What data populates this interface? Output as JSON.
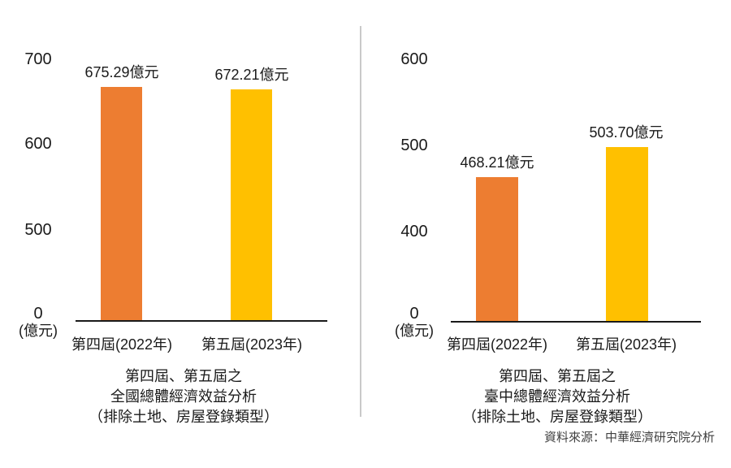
{
  "page": {
    "source_note": "資料來源：中華經濟研究院分析"
  },
  "chart_data": [
    {
      "type": "bar",
      "title": "第四屆、第五屆之全國總體經濟效益分析（排除土地、房屋登錄類型）",
      "title_lines": [
        "第四屆、第五屆之",
        "全國總體經濟效益分析",
        "（排除土地、房屋登錄類型）"
      ],
      "categories": [
        "第四屆(2022年)",
        "第五屆(2023年)"
      ],
      "values": [
        675.29,
        672.21
      ],
      "value_labels": [
        "675.29億元",
        "672.21億元"
      ],
      "series_colors": [
        "#ED7D31",
        "#FFC000"
      ],
      "unit": "(億元)",
      "yticks": [
        0,
        500,
        600,
        700
      ],
      "ytick_labels_desc": [
        "700",
        "600",
        "500",
        "0"
      ],
      "ylim": [
        0,
        700
      ],
      "grid": false,
      "legend": "none",
      "axis_note": "y-axis compressed between 0 and 500"
    },
    {
      "type": "bar",
      "title": "第四屆、第五屆之臺中總體經濟效益分析（排除土地、房屋登錄類型）",
      "title_lines": [
        "第四屆、第五屆之",
        "臺中總體經濟效益分析",
        "（排除土地、房屋登錄類型）"
      ],
      "categories": [
        "第四屆(2022年)",
        "第五屆(2023年)"
      ],
      "values": [
        468.21,
        503.7
      ],
      "value_labels": [
        "468.21億元",
        "503.70億元"
      ],
      "series_colors": [
        "#ED7D31",
        "#FFC000"
      ],
      "unit": "(億元)",
      "yticks": [
        0,
        400,
        500,
        600
      ],
      "ytick_labels_desc": [
        "600",
        "500",
        "400",
        "0"
      ],
      "ylim": [
        0,
        600
      ],
      "grid": false,
      "legend": "none",
      "axis_note": "y-axis compressed between 0 and 400"
    }
  ]
}
